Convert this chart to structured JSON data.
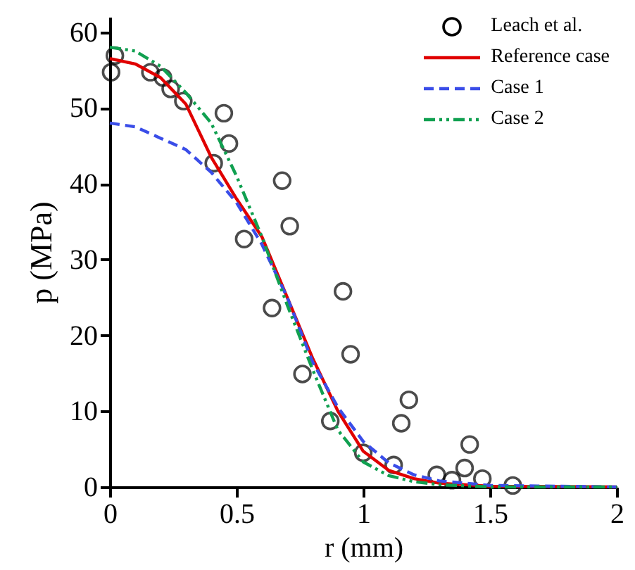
{
  "chart_data": {
    "type": "line",
    "xlabel": "r (mm)",
    "ylabel": "p (MPa)",
    "xlim": [
      0,
      2
    ],
    "xticks": [
      0,
      0.5,
      1,
      1.5,
      2
    ],
    "ylim": [
      0,
      62
    ],
    "yticks": [
      0,
      10,
      20,
      30,
      40,
      50,
      60
    ],
    "grid": false,
    "legend": "top right",
    "series": [
      {
        "name": "Leach et al.",
        "type": "scatter",
        "marker": "circle",
        "color": "#000000",
        "x": [
          0.005,
          0.02,
          0.16,
          0.21,
          0.24,
          0.29,
          0.41,
          0.45,
          0.47,
          0.53,
          0.64,
          0.68,
          0.71,
          0.76,
          0.87,
          0.92,
          0.95,
          1.0,
          1.12,
          1.15,
          1.18,
          1.29,
          1.35,
          1.4,
          1.42,
          1.47,
          1.59
        ],
        "values": [
          54.7,
          56.9,
          54.7,
          54,
          52.5,
          50.9,
          42.7,
          49.3,
          45.3,
          32.7,
          23.6,
          40.4,
          34.4,
          14.9,
          8.7,
          25.8,
          17.5,
          4.5,
          2.9,
          8.4,
          11.5,
          1.6,
          0.9,
          2.5,
          5.6,
          1.1,
          0.2
        ]
      },
      {
        "name": "Reference case",
        "marker": "none",
        "line_style": "solid",
        "color": "#e00000",
        "x": [
          0,
          0.1,
          0.2,
          0.3,
          0.4,
          0.5,
          0.6,
          0.7,
          0.8,
          0.9,
          1.0,
          1.1,
          1.2,
          1.3,
          1.5,
          2
        ],
        "values": [
          56.5,
          55.8,
          54,
          50.5,
          43.5,
          38,
          33,
          25,
          17,
          10,
          4.7,
          2.2,
          1.1,
          0.5,
          0.1,
          0
        ]
      },
      {
        "name": "Case 1",
        "marker": "none",
        "line_style": "dashed",
        "color": "#3a4de8",
        "x": [
          0,
          0.1,
          0.2,
          0.3,
          0.4,
          0.5,
          0.6,
          0.7,
          0.8,
          0.9,
          1.0,
          1.1,
          1.2,
          1.3,
          1.5,
          2
        ],
        "values": [
          48,
          47.5,
          46,
          44.5,
          41.5,
          37.5,
          32,
          25,
          16.5,
          10.5,
          6,
          3.2,
          1.6,
          0.8,
          0.2,
          0
        ]
      },
      {
        "name": "Case 2",
        "marker": "none",
        "line_style": "dotted",
        "color": "#10a050",
        "x": [
          0,
          0.1,
          0.2,
          0.3,
          0.4,
          0.5,
          0.6,
          0.7,
          0.8,
          0.9,
          1.0,
          1.1,
          1.2,
          1.3,
          1.5,
          2
        ],
        "values": [
          58,
          57.5,
          55.5,
          52,
          48,
          41,
          33,
          24,
          15.5,
          7.5,
          3.3,
          1.5,
          0.7,
          0.3,
          0,
          0
        ]
      }
    ]
  }
}
